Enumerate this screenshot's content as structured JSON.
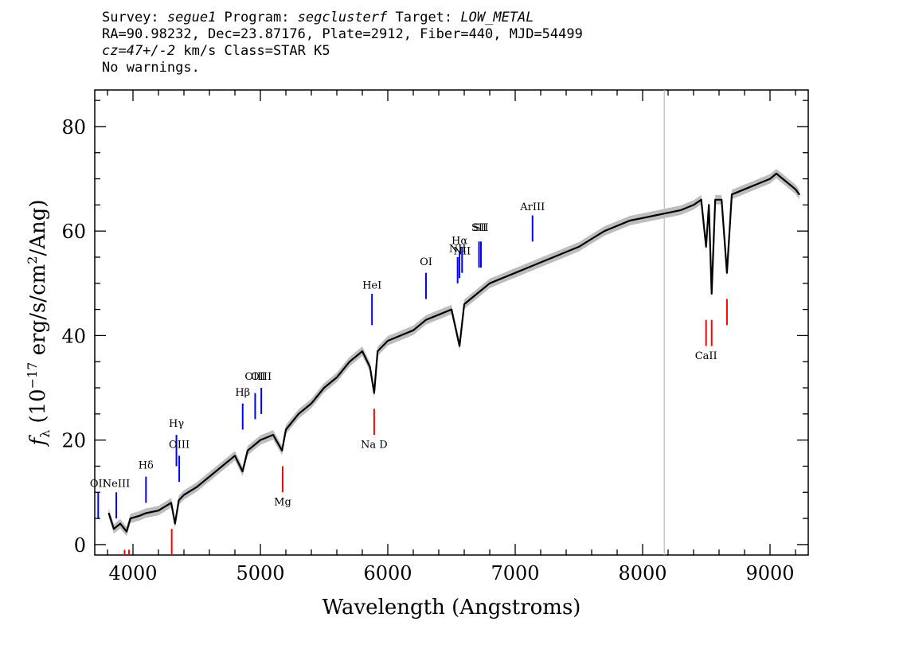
{
  "header": {
    "line1_a": "Survey: ",
    "survey": "segue1",
    "line1_b": " Program: ",
    "program": "segclusterf",
    "line1_c": " Target: ",
    "target": "LOW_METAL",
    "line2": "RA=90.98232, Dec=23.87176, Plate=2912, Fiber=440, MJD=54499",
    "cz": "cz=47+/-2",
    "line3_b": " km/s Class=STAR K5",
    "line4": "No warnings."
  },
  "chart_data": {
    "type": "line",
    "xlabel": "Wavelength (Angstroms)",
    "ylabel": "f_λ (10^-17 erg/s/cm^2/Ang)",
    "xlim": [
      3700,
      9300
    ],
    "ylim": [
      -2,
      87
    ],
    "x_ticks": [
      4000,
      5000,
      6000,
      7000,
      8000,
      9000
    ],
    "y_ticks": [
      0,
      20,
      40,
      60,
      80
    ],
    "grid": false,
    "vertical_marker_x": 8170,
    "series": [
      {
        "color": "#000000",
        "points": [
          [
            3810,
            6
          ],
          [
            3850,
            3
          ],
          [
            3900,
            4
          ],
          [
            3950,
            2.5
          ],
          [
            3980,
            5
          ],
          [
            4050,
            5.5
          ],
          [
            4100,
            6
          ],
          [
            4200,
            6.5
          ],
          [
            4300,
            8
          ],
          [
            4330,
            4
          ],
          [
            4360,
            8.5
          ],
          [
            4400,
            9.5
          ],
          [
            4500,
            11
          ],
          [
            4600,
            13
          ],
          [
            4700,
            15
          ],
          [
            4800,
            17
          ],
          [
            4860,
            14
          ],
          [
            4900,
            18
          ],
          [
            5000,
            20
          ],
          [
            5100,
            21
          ],
          [
            5170,
            18
          ],
          [
            5200,
            22
          ],
          [
            5300,
            25
          ],
          [
            5400,
            27
          ],
          [
            5500,
            30
          ],
          [
            5600,
            32
          ],
          [
            5700,
            35
          ],
          [
            5800,
            37
          ],
          [
            5860,
            34
          ],
          [
            5893,
            29
          ],
          [
            5920,
            37
          ],
          [
            6000,
            39
          ],
          [
            6100,
            40
          ],
          [
            6200,
            41
          ],
          [
            6300,
            43
          ],
          [
            6400,
            44
          ],
          [
            6500,
            45
          ],
          [
            6563,
            38
          ],
          [
            6600,
            46
          ],
          [
            6700,
            48
          ],
          [
            6800,
            50
          ],
          [
            6900,
            51
          ],
          [
            7000,
            52
          ],
          [
            7100,
            53
          ],
          [
            7200,
            54
          ],
          [
            7300,
            55
          ],
          [
            7400,
            56
          ],
          [
            7500,
            57
          ],
          [
            7600,
            58.5
          ],
          [
            7700,
            60
          ],
          [
            7800,
            61
          ],
          [
            7900,
            62
          ],
          [
            8000,
            62.5
          ],
          [
            8100,
            63
          ],
          [
            8200,
            63.5
          ],
          [
            8300,
            64
          ],
          [
            8400,
            65
          ],
          [
            8460,
            66
          ],
          [
            8498,
            57
          ],
          [
            8520,
            65
          ],
          [
            8542,
            48
          ],
          [
            8570,
            66
          ],
          [
            8620,
            66
          ],
          [
            8662,
            52
          ],
          [
            8700,
            67
          ],
          [
            8800,
            68
          ],
          [
            8900,
            69
          ],
          [
            9000,
            70
          ],
          [
            9050,
            71
          ],
          [
            9100,
            70
          ],
          [
            9150,
            69
          ],
          [
            9200,
            68
          ],
          [
            9230,
            67
          ]
        ]
      }
    ],
    "lines": [
      {
        "label": "OII",
        "x": 3727,
        "color": "#0000ff",
        "y1": 5,
        "y2": 10,
        "ly": 11
      },
      {
        "label": "NeIII",
        "x": 3869,
        "color": "#0000ff",
        "y1": 5,
        "y2": 10,
        "ly": 11
      },
      {
        "label": "Hδ",
        "x": 4102,
        "color": "#0000ff",
        "y1": 8,
        "y2": 13,
        "ly": 14.5
      },
      {
        "label": "Hγ",
        "x": 4341,
        "color": "#0000ff",
        "y1": 15,
        "y2": 21,
        "ly": 22.5
      },
      {
        "label": "OIII",
        "x": 4363,
        "color": "#0000ff",
        "y1": 12,
        "y2": 17,
        "ly": 18.5
      },
      {
        "label": "Hβ",
        "x": 4861,
        "color": "#0000ff",
        "y1": 22,
        "y2": 27,
        "ly": 28.5
      },
      {
        "label": "OIII",
        "x": 4959,
        "color": "#0000ff",
        "y1": 24,
        "y2": 29,
        "ly": 31.5
      },
      {
        "label": "OIII",
        "x": 5007,
        "color": "#0000ff",
        "y1": 25,
        "y2": 30,
        "ly": 31.5
      },
      {
        "label": "HeI",
        "x": 5876,
        "color": "#0000ff",
        "y1": 42,
        "y2": 48,
        "ly": 49
      },
      {
        "label": "OI",
        "x": 6300,
        "color": "#0000ff",
        "y1": 47,
        "y2": 52,
        "ly": 53.5
      },
      {
        "label": "NII",
        "x": 6548,
        "color": "#0000ff",
        "y1": 50,
        "y2": 55,
        "ly": 56
      },
      {
        "label": "Hα",
        "x": 6563,
        "color": "#0000ff",
        "y1": 51,
        "y2": 56,
        "ly": 57.5
      },
      {
        "label": "NII",
        "x": 6583,
        "color": "#0000ff",
        "y1": 52,
        "y2": 57,
        "ly": 55.5
      },
      {
        "label": "SII",
        "x": 6716,
        "color": "#0000ff",
        "y1": 53,
        "y2": 58,
        "ly": 60
      },
      {
        "label": "SII",
        "x": 6731,
        "color": "#0000ff",
        "y1": 53,
        "y2": 58,
        "ly": 60
      },
      {
        "label": "ArIII",
        "x": 7136,
        "color": "#0000ff",
        "y1": 58,
        "y2": 63,
        "ly": 64
      },
      {
        "label": "Na D",
        "x": 5893,
        "color": "#ff0000",
        "y1": 21,
        "y2": 26,
        "ly": 18.5
      },
      {
        "label": "Mg",
        "x": 5175,
        "color": "#ff0000",
        "y1": 10,
        "y2": 15,
        "ly": 7.5
      },
      {
        "label": "",
        "x": 4304,
        "color": "#ff0000",
        "y1": -2,
        "y2": 3,
        "ly": -3
      },
      {
        "label": "",
        "x": 3934,
        "color": "#ff0000",
        "y1": -2,
        "y2": -1,
        "ly": -3
      },
      {
        "label": "",
        "x": 3969,
        "color": "#ff0000",
        "y1": -2,
        "y2": -1,
        "ly": -3
      },
      {
        "label": "CaII",
        "x": 8498,
        "color": "#ff0000",
        "y1": 38,
        "y2": 43,
        "ly": 35.5
      },
      {
        "label": "",
        "x": 8542,
        "color": "#ff0000",
        "y1": 38,
        "y2": 43,
        "ly": 35.5
      },
      {
        "label": "",
        "x": 8662,
        "color": "#ff0000",
        "y1": 42,
        "y2": 47,
        "ly": 35.5
      }
    ]
  }
}
